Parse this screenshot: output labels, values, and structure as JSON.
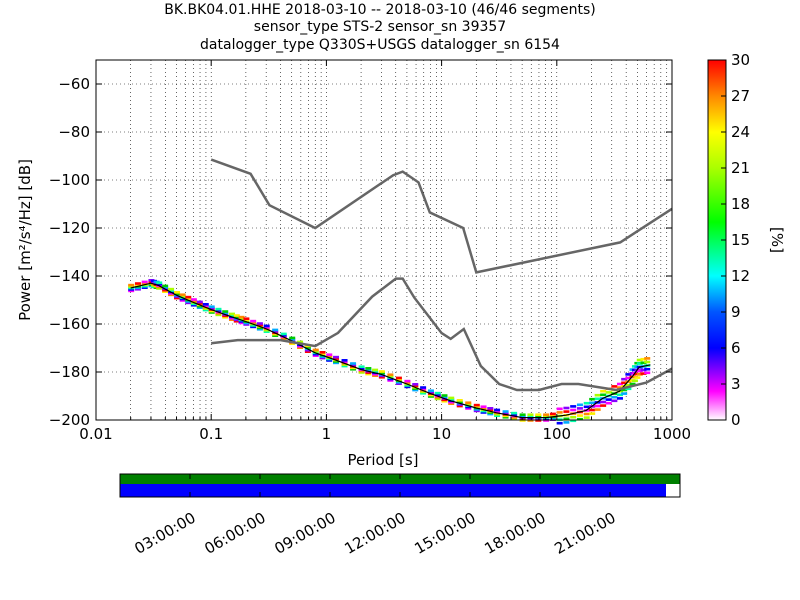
{
  "title_lines": [
    "BK.BK04.01.HHE   2018-03-10 -- 2018-03-10  (46/46 segments)",
    "sensor_type STS-2 sensor_sn 39357",
    "datalogger_type Q330S+USGS datalogger_sn 6154"
  ],
  "colorbar": {
    "label": "[%]",
    "ticks": [
      "0",
      "3",
      "6",
      "9",
      "12",
      "15",
      "18",
      "21",
      "24",
      "27",
      "30"
    ],
    "range": [
      0,
      30
    ]
  },
  "timeline": {
    "tick_labels": [
      "03:00:00",
      "06:00:00",
      "09:00:00",
      "12:00:00",
      "15:00:00",
      "18:00:00",
      "21:00:00"
    ],
    "bars": [
      {
        "name": "data-coverage",
        "color": "#008000",
        "fraction": 1.0
      },
      {
        "name": "segment-coverage",
        "color": "#0000ff",
        "fraction": 0.975
      }
    ],
    "colors": {
      "top": "#008000",
      "bottom": "#0000ff"
    }
  },
  "chart_data": {
    "type": "heatmap",
    "title": "BK.BK04.01.HHE   2018-03-10 -- 2018-03-10  (46/46 segments)",
    "xlabel": "Period [s]",
    "ylabel": "Power [m²/s⁴/Hz] [dB]",
    "xscale": "log",
    "xlim": [
      0.01,
      1000
    ],
    "ylim": [
      -200,
      -50
    ],
    "x_tick_labels": [
      "0.01",
      "0.1",
      "1",
      "10",
      "100",
      "1000"
    ],
    "x_ticks": [
      0.01,
      0.1,
      1,
      10,
      100,
      1000
    ],
    "y_ticks": [
      -200,
      -180,
      -160,
      -140,
      -120,
      -100,
      -80,
      -60
    ],
    "y_tick_labels": [
      "−200",
      "−180",
      "−160",
      "−140",
      "−120",
      "−100",
      "−80",
      "−60"
    ],
    "grid": true,
    "noise_models": [
      {
        "name": "NHNM",
        "color": "#666666",
        "points": [
          [
            0.1,
            -91.5
          ],
          [
            0.22,
            -97.4
          ],
          [
            0.32,
            -110.5
          ],
          [
            0.8,
            -120
          ],
          [
            3.8,
            -98
          ],
          [
            4.6,
            -96.5
          ],
          [
            6.3,
            -101
          ],
          [
            7.9,
            -113.5
          ],
          [
            15.4,
            -120
          ],
          [
            20,
            -138.5
          ],
          [
            354.8,
            -126
          ],
          [
            1000,
            -112
          ]
        ]
      },
      {
        "name": "NLNM",
        "color": "#666666",
        "points": [
          [
            0.1,
            -168
          ],
          [
            0.17,
            -166.7
          ],
          [
            0.4,
            -166.7
          ],
          [
            0.8,
            -169.2
          ],
          [
            1.26,
            -163.7
          ],
          [
            2.5,
            -148.6
          ],
          [
            4,
            -141.1
          ],
          [
            4.6,
            -141.1
          ],
          [
            5.8,
            -149
          ],
          [
            10,
            -163.8
          ],
          [
            12,
            -166.2
          ],
          [
            15.6,
            -162.1
          ],
          [
            21.9,
            -177.5
          ],
          [
            31.6,
            -185
          ],
          [
            45,
            -187.5
          ],
          [
            70,
            -187.5
          ],
          [
            110,
            -185
          ],
          [
            154,
            -185
          ],
          [
            328,
            -187.5
          ],
          [
            600,
            -184.4
          ],
          [
            1000,
            -178.6
          ]
        ]
      }
    ],
    "psd_mode": [
      [
        0.02,
        -145
      ],
      [
        0.03,
        -143
      ],
      [
        0.035,
        -144
      ],
      [
        0.05,
        -148
      ],
      [
        0.07,
        -151
      ],
      [
        0.1,
        -154
      ],
      [
        0.15,
        -157
      ],
      [
        0.2,
        -159
      ],
      [
        0.3,
        -162
      ],
      [
        0.5,
        -167
      ],
      [
        0.8,
        -172
      ],
      [
        1.2,
        -175
      ],
      [
        2,
        -179
      ],
      [
        3,
        -181
      ],
      [
        5,
        -185
      ],
      [
        8,
        -189
      ],
      [
        12,
        -192
      ],
      [
        20,
        -195
      ],
      [
        30,
        -197
      ],
      [
        50,
        -199
      ],
      [
        80,
        -199
      ],
      [
        120,
        -198
      ],
      [
        180,
        -196
      ],
      [
        250,
        -191
      ],
      [
        350,
        -188
      ],
      [
        450,
        -182
      ],
      [
        520,
        -178
      ],
      [
        650,
        -177
      ]
    ],
    "psd_scatter_offsets_db": [
      -3,
      -1.5,
      0,
      1.5,
      3
    ],
    "psd_scatter_colors": [
      "#ff00ff",
      "#8800ff",
      "#0000ff",
      "#00aaff",
      "#00ffaa",
      "#00cc00",
      "#aaff00",
      "#ffee00",
      "#ff8800",
      "#ff0000"
    ]
  }
}
